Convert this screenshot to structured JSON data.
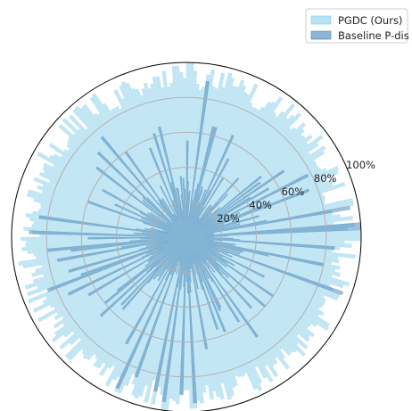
{
  "chart_data": {
    "type": "polar-area",
    "title": "",
    "r_ticks": [
      "20%",
      "40%",
      "60%",
      "80%",
      "100%"
    ],
    "r_tick_values": [
      20,
      40,
      60,
      80,
      100
    ],
    "rlim": [
      0,
      100
    ],
    "grid": true,
    "legend_position": "top-right",
    "series": [
      {
        "name": "PGDC (Ours)",
        "color": "#87ceeb",
        "fill_opacity": 0.5,
        "profile": {
          "n_bins": 300,
          "base": 90,
          "amplitude": 7,
          "dips": [
            {
              "angle_deg": 15,
              "width_deg": 6,
              "value": 80
            },
            {
              "angle_deg": 28,
              "width_deg": 4,
              "value": 85
            },
            {
              "angle_deg": 62,
              "width_deg": 5,
              "value": 83
            },
            {
              "angle_deg": 118,
              "width_deg": 5,
              "value": 82
            },
            {
              "angle_deg": 140,
              "width_deg": 4,
              "value": 86
            },
            {
              "angle_deg": 168,
              "width_deg": 3,
              "value": 84
            },
            {
              "angle_deg": 232,
              "width_deg": 8,
              "value": 88
            },
            {
              "angle_deg": 290,
              "width_deg": 4,
              "value": 84
            },
            {
              "angle_deg": 335,
              "width_deg": 4,
              "value": 85
            }
          ],
          "peaks": [
            {
              "angle_deg": 0,
              "value": 100
            },
            {
              "angle_deg": 88,
              "value": 100
            },
            {
              "angle_deg": 93,
              "value": 98
            },
            {
              "angle_deg": 225,
              "value": 97
            },
            {
              "angle_deg": 245,
              "value": 97
            },
            {
              "angle_deg": 262,
              "value": 100
            },
            {
              "angle_deg": 272,
              "value": 98
            }
          ]
        }
      },
      {
        "name": "Baseline P-dis",
        "color": "#4682b4",
        "fill_opacity": 0.5,
        "profile": {
          "n_bins": 300,
          "base": 22,
          "amplitude": 12,
          "spikes": [
            {
              "angle_deg": 3,
              "value": 100
            },
            {
              "angle_deg": 10,
              "value": 95
            },
            {
              "angle_deg": 20,
              "value": 75
            },
            {
              "angle_deg": 26,
              "value": 78
            },
            {
              "angle_deg": 38,
              "value": 55
            },
            {
              "angle_deg": 48,
              "value": 45
            },
            {
              "angle_deg": 58,
              "value": 40
            },
            {
              "angle_deg": 75,
              "value": 65
            },
            {
              "angle_deg": 82,
              "value": 90
            },
            {
              "angle_deg": 95,
              "value": 35
            },
            {
              "angle_deg": 103,
              "value": 65
            },
            {
              "angle_deg": 112,
              "value": 55
            },
            {
              "angle_deg": 125,
              "value": 60
            },
            {
              "angle_deg": 130,
              "value": 75
            },
            {
              "angle_deg": 136,
              "value": 70
            },
            {
              "angle_deg": 142,
              "value": 65
            },
            {
              "angle_deg": 150,
              "value": 55
            },
            {
              "angle_deg": 155,
              "value": 45
            },
            {
              "angle_deg": 160,
              "value": 60
            },
            {
              "angle_deg": 172,
              "value": 85
            },
            {
              "angle_deg": 178,
              "value": 90
            },
            {
              "angle_deg": 185,
              "value": 80
            },
            {
              "angle_deg": 190,
              "value": 75
            },
            {
              "angle_deg": 196,
              "value": 70
            },
            {
              "angle_deg": 200,
              "value": 85
            },
            {
              "angle_deg": 205,
              "value": 75
            },
            {
              "angle_deg": 210,
              "value": 65
            },
            {
              "angle_deg": 218,
              "value": 60
            },
            {
              "angle_deg": 228,
              "value": 55
            },
            {
              "angle_deg": 240,
              "value": 70
            },
            {
              "angle_deg": 245,
              "value": 95
            },
            {
              "angle_deg": 250,
              "value": 85
            },
            {
              "angle_deg": 258,
              "value": 90
            },
            {
              "angle_deg": 262,
              "value": 95
            },
            {
              "angle_deg": 268,
              "value": 90
            },
            {
              "angle_deg": 272,
              "value": 95
            },
            {
              "angle_deg": 280,
              "value": 65
            },
            {
              "angle_deg": 288,
              "value": 55
            },
            {
              "angle_deg": 295,
              "value": 45
            },
            {
              "angle_deg": 305,
              "value": 70
            },
            {
              "angle_deg": 312,
              "value": 55
            },
            {
              "angle_deg": 318,
              "value": 60
            },
            {
              "angle_deg": 325,
              "value": 60
            },
            {
              "angle_deg": 332,
              "value": 50
            },
            {
              "angle_deg": 340,
              "value": 95
            },
            {
              "angle_deg": 348,
              "value": 80
            },
            {
              "angle_deg": 355,
              "value": 85
            }
          ]
        }
      }
    ]
  }
}
